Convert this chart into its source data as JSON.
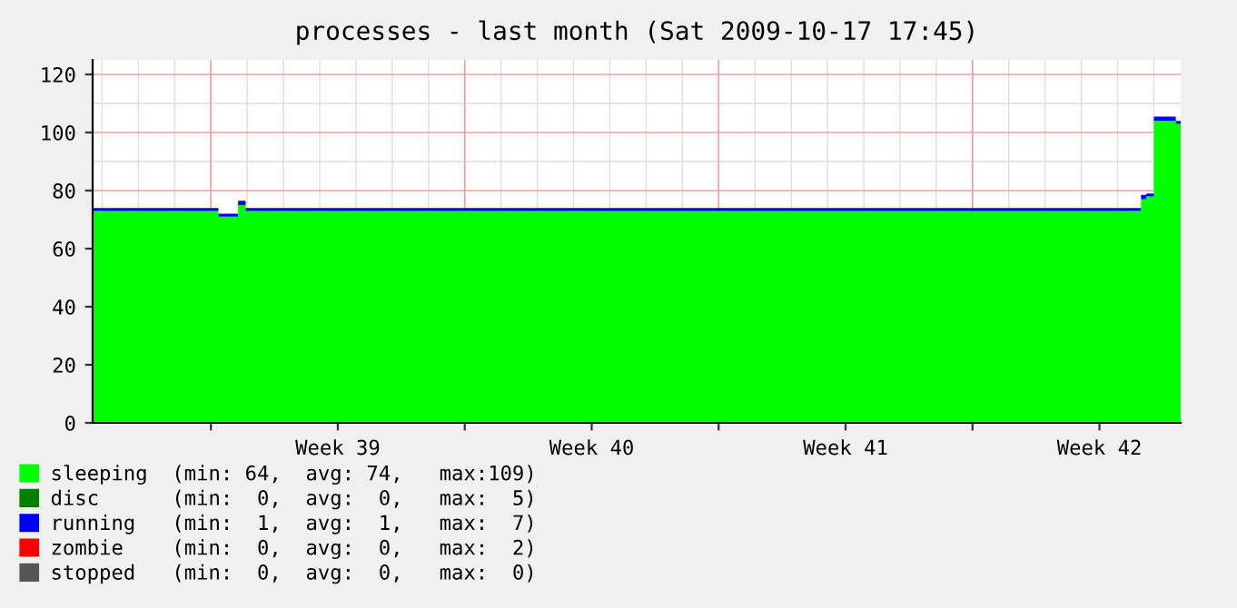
{
  "chart_data": {
    "type": "area",
    "stacked": true,
    "title": "processes - last month (Sat 2009-10-17 17:45)",
    "x": [
      "2009-09-17T17:45",
      "2009-09-21T05:00",
      "2009-09-21T18:00",
      "2009-09-21T23:00",
      "2009-10-16T15:30",
      "2009-10-16T19:00",
      "2009-10-17T00:00",
      "2009-10-17T14:30",
      "2009-10-17T17:45"
    ],
    "series": [
      {
        "name": "sleeping  (min: 64,  avg: 74,   max:109)",
        "color": "#00ff00",
        "values": [
          73,
          71,
          75,
          73,
          77,
          78,
          104,
          103,
          103
        ]
      },
      {
        "name": "disc      (min:  0,  avg:  0,   max:  5)",
        "color": "#008000",
        "values": [
          null,
          null,
          null,
          null,
          null,
          null,
          null,
          null,
          null
        ]
      },
      {
        "name": "running   (min:  1,  avg:  1,   max:  7)",
        "color": "#0000ff",
        "values": [
          1,
          1,
          1.5,
          1,
          1.5,
          1,
          1.5,
          1,
          1
        ]
      },
      {
        "name": "zombie    (min:  0,  avg:  0,   max:  2)",
        "color": "#ff0000",
        "values": [
          null,
          null,
          null,
          null,
          null,
          null,
          null,
          null,
          null
        ]
      },
      {
        "name": "stopped   (min:  0,  avg:  0,   max:  0)",
        "color": "#555555",
        "values": [
          null,
          null,
          null,
          null,
          null,
          null,
          null,
          null,
          null
        ]
      }
    ],
    "xlim": [
      "2009-09-17T17:45",
      "2009-10-17T17:45"
    ],
    "ylim": [
      0,
      125
    ],
    "xticks": [
      {
        "value": "2009-09-21",
        "label": null
      },
      {
        "value": "2009-09-24T12:00",
        "label": "Week 39"
      },
      {
        "value": "2009-09-28",
        "label": null
      },
      {
        "value": "2009-10-01T12:00",
        "label": "Week 40"
      },
      {
        "value": "2009-10-05",
        "label": null
      },
      {
        "value": "2009-10-08T12:00",
        "label": "Week 41"
      },
      {
        "value": "2009-10-12",
        "label": null
      },
      {
        "value": "2009-10-15T12:00",
        "label": "Week 42"
      }
    ],
    "yticks": [
      0,
      20,
      40,
      60,
      80,
      100,
      120
    ],
    "grid": true,
    "legend": "bottom left"
  }
}
